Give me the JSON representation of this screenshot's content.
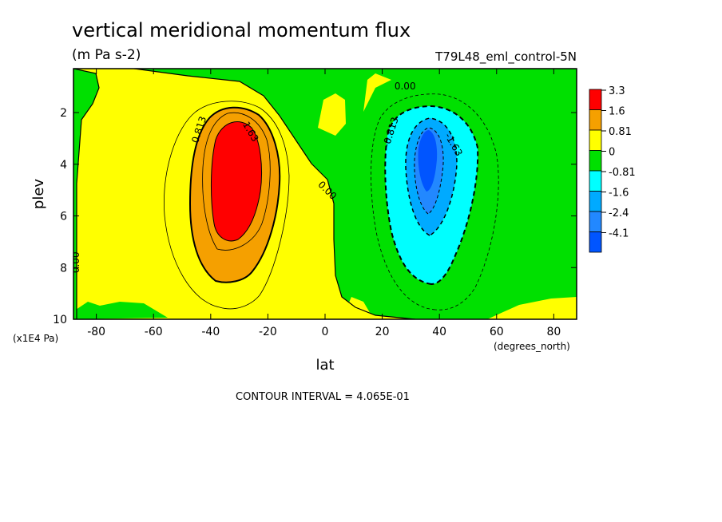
{
  "chart_data": {
    "type": "heatmap",
    "title": "vertical meridional momentum flux",
    "subtitle": "(m Pa s-2)",
    "run_label": "T79L48_eml_control-5N",
    "xlabel": "lat",
    "ylabel": "plev",
    "x_units": "(degrees_north)",
    "y_units": "(x1E4 Pa)",
    "footer": "CONTOUR INTERVAL = 4.065E-01",
    "xlim": [
      -88,
      88
    ],
    "ylim": [
      10,
      0.3
    ],
    "x_ticks": [
      -80,
      -60,
      -40,
      -20,
      0,
      20,
      40,
      60,
      80
    ],
    "x_tick_labels": [
      "-80",
      "-60",
      "-40",
      "-20",
      "0",
      "20",
      "40",
      "60",
      "80"
    ],
    "y_ticks": [
      2,
      4,
      6,
      8,
      10
    ],
    "y_tick_labels": [
      "2",
      "4",
      "6",
      "8",
      "10"
    ],
    "contour_interval": 0.4065,
    "levels": [
      {
        "label": "3.3",
        "color": "#ff0000"
      },
      {
        "label": "1.6",
        "color": "#f5a000"
      },
      {
        "label": "0.81",
        "color": "#ffff00"
      },
      {
        "label": "0",
        "color": "#00e000"
      },
      {
        "label": "-0.81",
        "color": "#00ffff"
      },
      {
        "label": "-1.6",
        "color": "#00aaff"
      },
      {
        "label": "-2.4",
        "color": "#2288ff"
      },
      {
        "label": "-4.1",
        "color": "#0055ff"
      }
    ],
    "features": [
      {
        "name": "positive-maximum",
        "lat": -32,
        "plev": 3.6,
        "max_value": 3.3
      },
      {
        "name": "negative-minimum",
        "lat": 36,
        "plev": 3.4,
        "min_value": -4.1
      }
    ],
    "contour_labels": [
      {
        "text": "0.813",
        "lat": -43,
        "plev": 2.7,
        "rotation": -72
      },
      {
        "text": "1.63",
        "lat": -27,
        "plev": 2.8,
        "rotation": 60
      },
      {
        "text": "0.00",
        "lat": 28,
        "plev": 1.1,
        "rotation": 0
      },
      {
        "text": "0.00",
        "lat": 0,
        "plev": 5.1,
        "rotation": 45
      },
      {
        "text": "0.00",
        "lat": -86,
        "plev": 7.8,
        "rotation": -90
      },
      {
        "text": "-0.813",
        "lat": 24,
        "plev": 2.8,
        "rotation": -72
      },
      {
        "text": "-1.63",
        "lat": 44,
        "plev": 3.3,
        "rotation": 60
      }
    ]
  }
}
